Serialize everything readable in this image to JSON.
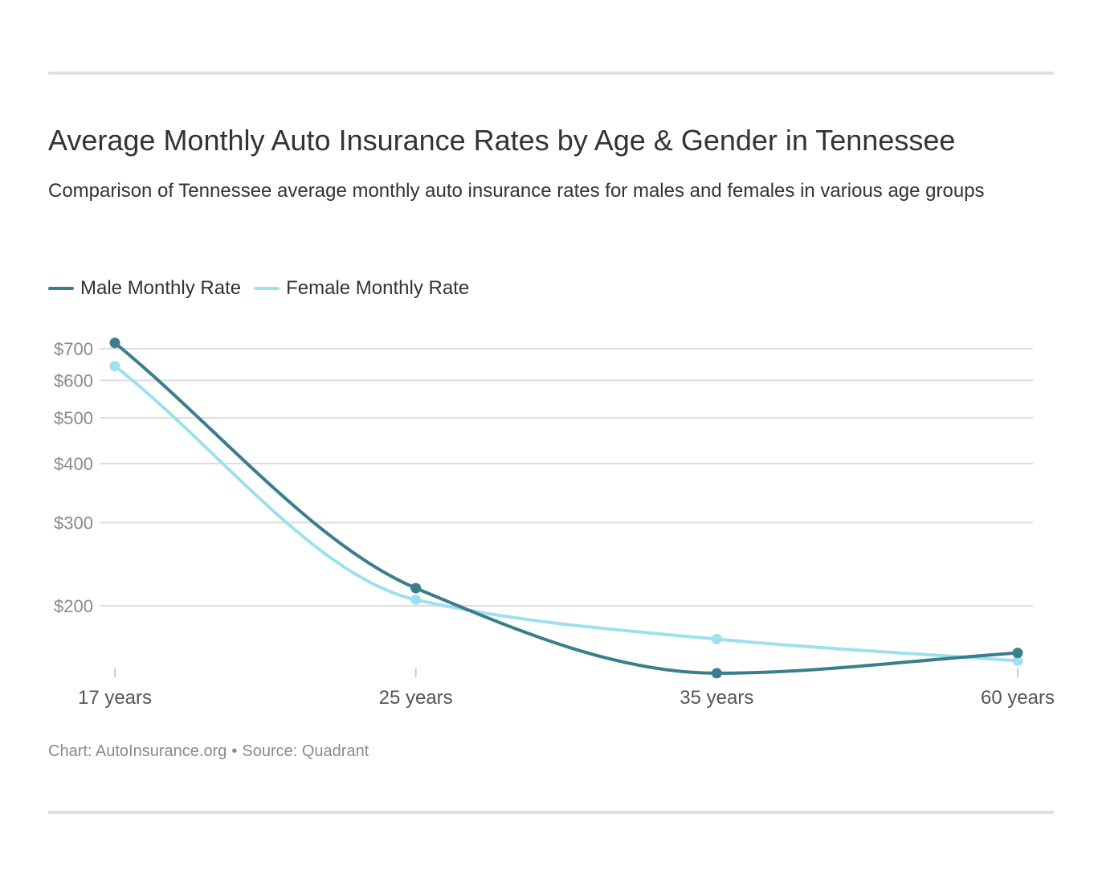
{
  "header": {
    "title": "Average Monthly Auto Insurance Rates by Age & Gender in Tennessee",
    "subtitle": "Comparison of Tennessee average monthly auto insurance rates for males and females in various age groups"
  },
  "footer": {
    "chart_credit": "Chart: AutoInsurance.org",
    "separator": "•",
    "source": "Source: Quadrant"
  },
  "chart_data": {
    "type": "line",
    "title": "Average Monthly Auto Insurance Rates by Age & Gender in Tennessee",
    "subtitle": "Comparison of Tennessee average monthly auto insurance rates for males and females in various age groups",
    "categories": [
      "17 years",
      "25 years",
      "35 years",
      "60 years"
    ],
    "y_scale": "log",
    "ylim": [
      140,
      730
    ],
    "y_ticks": [
      200,
      300,
      400,
      500,
      600,
      700
    ],
    "y_tick_labels": [
      "$200",
      "$300",
      "$400",
      "$500",
      "$600",
      "$700"
    ],
    "grid": true,
    "legend_position": "top-left",
    "series": [
      {
        "name": "Male Monthly Rate",
        "color": "#3a7d8c",
        "values": [
          720,
          218,
          144,
          159
        ]
      },
      {
        "name": "Female Monthly Rate",
        "color": "#9de0ee",
        "values": [
          643,
          206,
          170,
          153
        ]
      }
    ]
  }
}
